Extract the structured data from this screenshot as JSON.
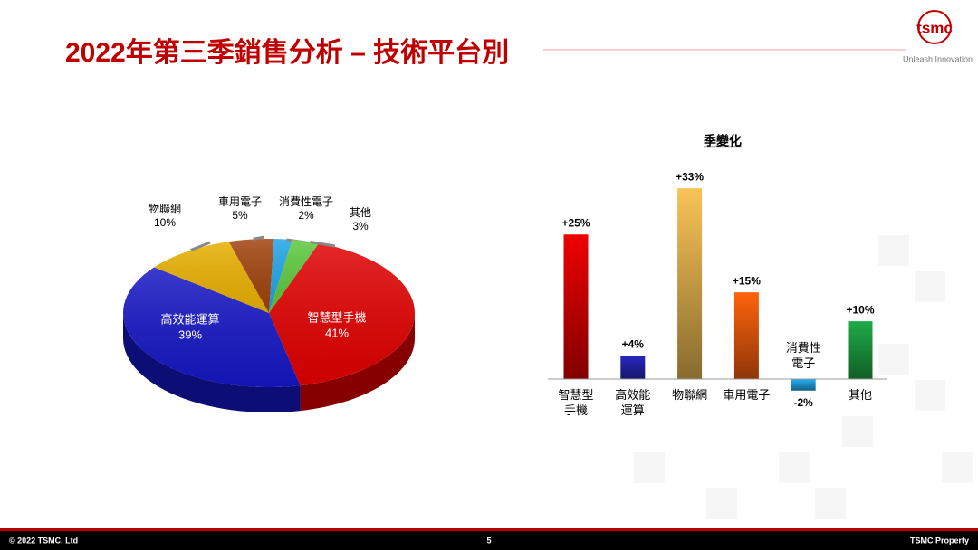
{
  "slide": {
    "title": "2022年第三季銷售分析 – 技術平台別",
    "logo": "tsmc",
    "tagline": "Unleash Innovation",
    "footer_left": "© 2022 TSMC, Ltd",
    "page_number": "5",
    "footer_right": "TSMC Property"
  },
  "chart_data": [
    {
      "type": "pie",
      "categories": [
        "智慧型手機",
        "高效能運算",
        "物聯網",
        "車用電子",
        "消費性電子",
        "其他"
      ],
      "values": [
        41,
        39,
        10,
        5,
        2,
        3
      ],
      "value_labels": [
        "41%",
        "39%",
        "10%",
        "5%",
        "2%",
        "3%"
      ],
      "colors": [
        "#e00000",
        "#1616c4",
        "#e8b000",
        "#a0420c",
        "#1ea4e8",
        "#5cc83c"
      ]
    },
    {
      "type": "bar",
      "title": "季變化",
      "categories": [
        "智慧型\n手機",
        "高效能\n運算",
        "物聯網",
        "車用電子",
        "消費性\n電子",
        "其他"
      ],
      "values": [
        25,
        4,
        33,
        15,
        -2,
        10
      ],
      "value_labels": [
        "+25%",
        "+4%",
        "+33%",
        "+15%",
        "-2%",
        "+10%"
      ],
      "colors": [
        "#d80000",
        "#2424b0",
        "#e2b24e",
        "#ee5a0c",
        "#22a0e0",
        "#1c9c40"
      ]
    }
  ]
}
